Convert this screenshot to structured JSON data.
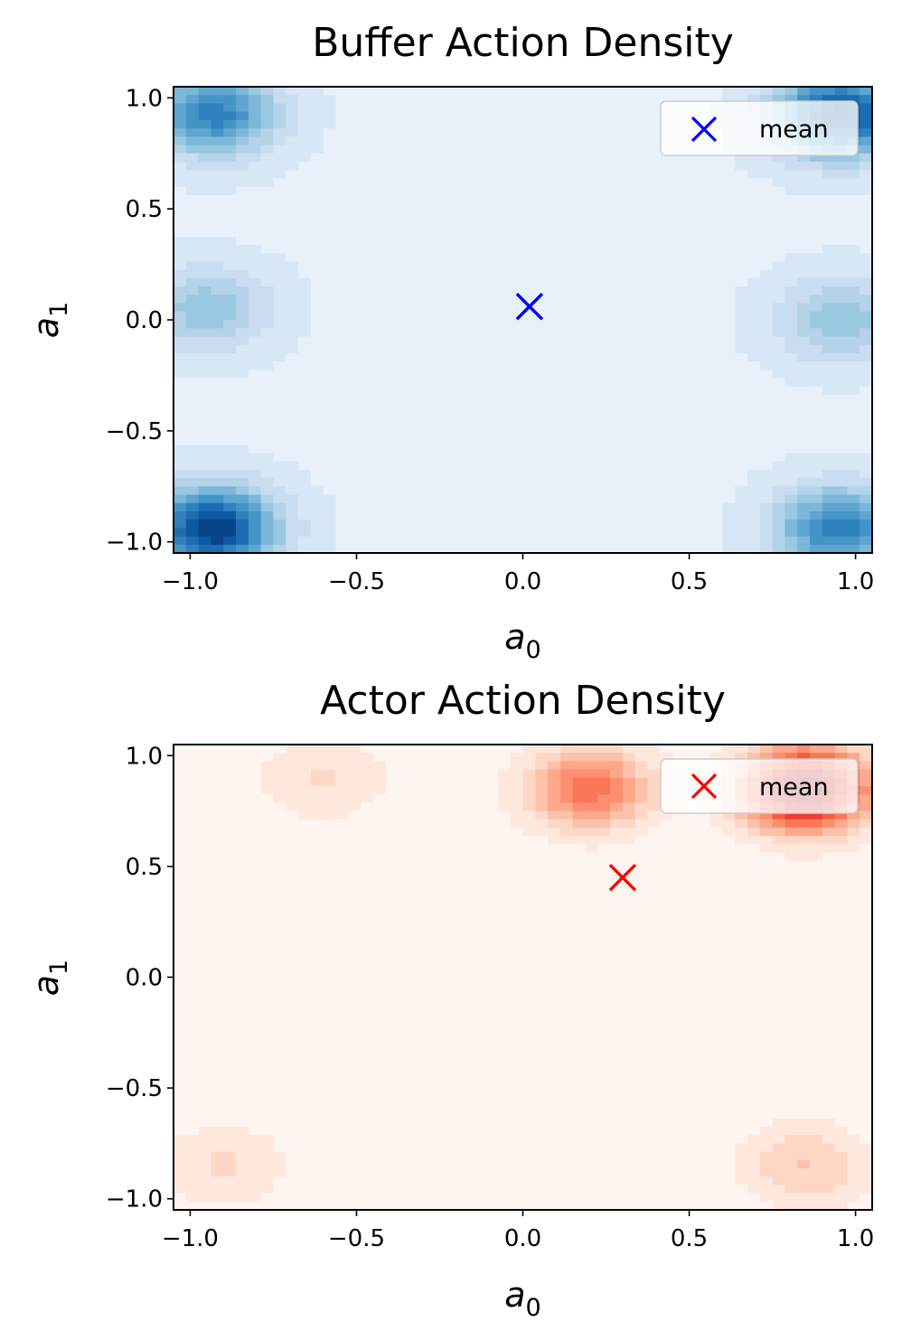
{
  "chart_data": [
    {
      "type": "contourf",
      "title": "Buffer Action Density",
      "xlabel": "a_0",
      "ylabel": "a_1",
      "xlim": [
        -1.05,
        1.05
      ],
      "ylim": [
        -1.05,
        1.05
      ],
      "xticks": [
        -1.0,
        -0.5,
        0.0,
        0.5,
        1.0
      ],
      "yticks": [
        -1.0,
        -0.5,
        0.0,
        0.5,
        1.0
      ],
      "xtick_labels": [
        "−1.0",
        "−0.5",
        "0.0",
        "0.5",
        "1.0"
      ],
      "ytick_labels": [
        "−1.0",
        "−0.5",
        "0.0",
        "0.5",
        "1.0"
      ],
      "colormap": "Blues",
      "density_peaks": [
        {
          "x": -0.93,
          "y": -0.94,
          "weight": 1.0
        },
        {
          "x": 0.95,
          "y": 0.92,
          "weight": 0.95
        },
        {
          "x": -0.93,
          "y": 0.93,
          "weight": 0.7
        },
        {
          "x": 0.95,
          "y": -0.94,
          "weight": 0.7
        },
        {
          "x": -0.95,
          "y": 0.05,
          "weight": 0.35
        },
        {
          "x": 0.95,
          "y": 0.0,
          "weight": 0.35
        }
      ],
      "mean": {
        "x": 0.02,
        "y": 0.06,
        "color": "#0000ff"
      },
      "legend": {
        "label": "mean",
        "position": "upper right"
      }
    },
    {
      "type": "contourf",
      "title": "Actor Action Density",
      "xlabel": "a_0",
      "ylabel": "a_1",
      "xlim": [
        -1.05,
        1.05
      ],
      "ylim": [
        -1.05,
        1.05
      ],
      "xticks": [
        -1.0,
        -0.5,
        0.0,
        0.5,
        1.0
      ],
      "yticks": [
        -1.0,
        -0.5,
        0.0,
        0.5,
        1.0
      ],
      "xtick_labels": [
        "−1.0",
        "−0.5",
        "0.0",
        "0.5",
        "1.0"
      ],
      "ytick_labels": [
        "−1.0",
        "−0.5",
        "0.0",
        "0.5",
        "1.0"
      ],
      "colormap": "Reds",
      "density_peaks": [
        {
          "x": 0.85,
          "y": 0.85,
          "weight": 1.0
        },
        {
          "x": 0.2,
          "y": 0.85,
          "weight": 0.5
        },
        {
          "x": -0.6,
          "y": 0.9,
          "weight": 0.15
        },
        {
          "x": 0.85,
          "y": -0.85,
          "weight": 0.22
        },
        {
          "x": -0.9,
          "y": -0.85,
          "weight": 0.15
        }
      ],
      "mean": {
        "x": 0.3,
        "y": 0.45,
        "color": "#ff0000"
      },
      "legend": {
        "label": "mean",
        "position": "upper right"
      }
    }
  ]
}
